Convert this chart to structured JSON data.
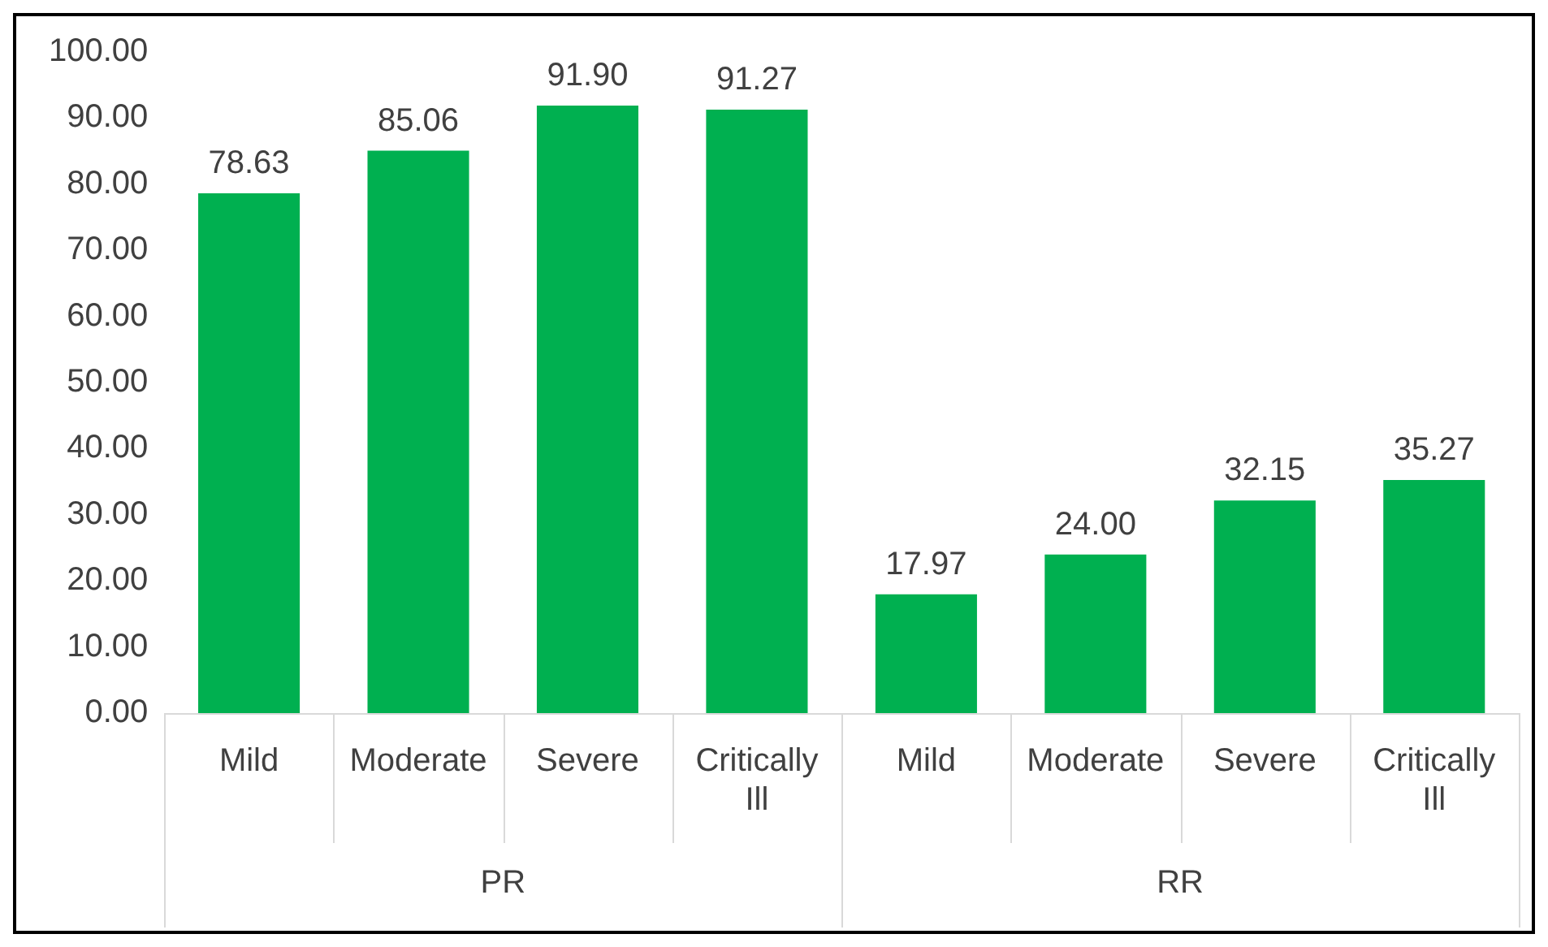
{
  "chart_data": {
    "type": "bar",
    "categories": [
      "Mild",
      "Moderate",
      "Severe",
      "Critically Ill",
      "Mild",
      "Moderate",
      "Severe",
      "Critically Ill"
    ],
    "series": [
      {
        "color": "#00b050",
        "values": [
          78.63,
          85.06,
          91.9,
          91.27,
          17.97,
          24.0,
          32.15,
          35.27
        ],
        "value_labels": [
          "78.63",
          "85.06",
          "91.90",
          "91.27",
          "17.97",
          "24.00",
          "32.15",
          "35.27"
        ]
      }
    ],
    "annotations": [
      "PR",
      "RR"
    ],
    "ylim": [
      0,
      100
    ],
    "yticks": [
      {
        "value": 0,
        "label": "0.00"
      },
      {
        "value": 10,
        "label": "10.00"
      },
      {
        "value": 20,
        "label": "20.00"
      },
      {
        "value": 30,
        "label": "30.00"
      },
      {
        "value": 40,
        "label": "40.00"
      },
      {
        "value": 50,
        "label": "50.00"
      },
      {
        "value": 60,
        "label": "60.00"
      },
      {
        "value": 70,
        "label": "70.00"
      },
      {
        "value": 80,
        "label": "80.00"
      },
      {
        "value": 90,
        "label": "90.00"
      },
      {
        "value": 100,
        "label": "100.00"
      }
    ],
    "grid": false,
    "legend": false
  }
}
